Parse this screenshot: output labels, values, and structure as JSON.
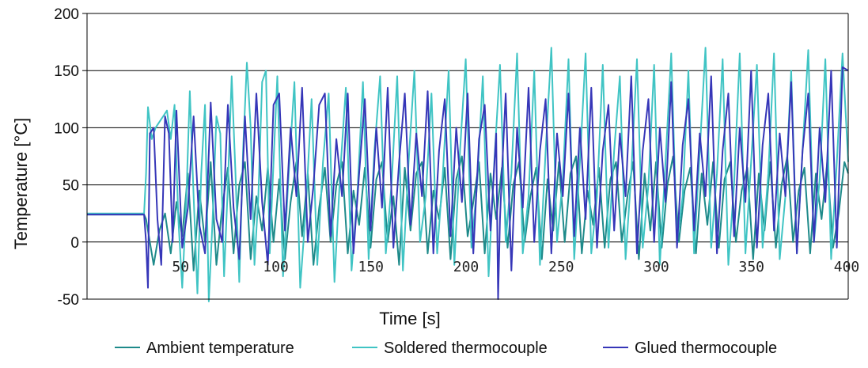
{
  "chart_data": {
    "type": "line",
    "title": "",
    "xlabel": "Time [s]",
    "ylabel": "Temperature [°C]",
    "xlim": [
      0,
      400
    ],
    "ylim": [
      -50,
      200
    ],
    "x_ticks": [
      50,
      100,
      150,
      200,
      250,
      300,
      350,
      400
    ],
    "x_tick_labels": [
      "50",
      "100",
      "150",
      "200",
      "250",
      "300",
      "350",
      "400"
    ],
    "y_ticks": [
      -50,
      0,
      50,
      100,
      150,
      200
    ],
    "y_tick_labels": [
      "-50",
      "0",
      "50",
      "100",
      "150",
      "200"
    ],
    "grid": "horizontal",
    "legend_position": "bottom",
    "series": [
      {
        "name": "Ambient temperature",
        "color": "#1e8a8a",
        "x": [
          0,
          10,
          20,
          30,
          31,
          33,
          35,
          38,
          41,
          44,
          47,
          50,
          53,
          56,
          59,
          62,
          65,
          68,
          71,
          74,
          77,
          80,
          83,
          86,
          89,
          92,
          95,
          98,
          101,
          104,
          107,
          110,
          113,
          116,
          119,
          122,
          125,
          128,
          131,
          134,
          137,
          140,
          143,
          146,
          149,
          152,
          155,
          158,
          161,
          164,
          167,
          170,
          173,
          176,
          179,
          182,
          185,
          188,
          191,
          194,
          197,
          200,
          203,
          206,
          209,
          212,
          215,
          218,
          221,
          224,
          227,
          230,
          233,
          236,
          239,
          242,
          245,
          248,
          251,
          254,
          257,
          260,
          263,
          266,
          269,
          272,
          275,
          278,
          281,
          284,
          287,
          290,
          293,
          296,
          299,
          302,
          305,
          308,
          311,
          314,
          317,
          320,
          323,
          326,
          329,
          332,
          335,
          338,
          341,
          344,
          347,
          350,
          353,
          356,
          359,
          362,
          365,
          368,
          371,
          374,
          377,
          380,
          383,
          386,
          389,
          392,
          395,
          398,
          400
        ],
        "values": [
          24,
          24,
          24,
          24,
          20,
          0,
          -20,
          10,
          25,
          -10,
          35,
          5,
          60,
          -25,
          45,
          0,
          70,
          -20,
          30,
          65,
          -10,
          50,
          70,
          -15,
          40,
          10,
          65,
          0,
          55,
          -15,
          35,
          70,
          5,
          60,
          -20,
          30,
          65,
          0,
          50,
          70,
          -10,
          45,
          15,
          65,
          -5,
          55,
          70,
          0,
          40,
          -20,
          65,
          10,
          60,
          70,
          -10,
          45,
          20,
          65,
          -15,
          55,
          75,
          5,
          35,
          70,
          -10,
          60,
          20,
          65,
          -5,
          50,
          70,
          0,
          40,
          65,
          -15,
          55,
          10,
          70,
          0,
          60,
          75,
          -10,
          45,
          15,
          65,
          -5,
          55,
          70,
          0,
          40,
          70,
          -15,
          60,
          10,
          70,
          -5,
          50,
          75,
          0,
          45,
          65,
          -10,
          60,
          15,
          70,
          -5,
          55,
          70,
          0,
          45,
          65,
          -15,
          60,
          10,
          70,
          -5,
          50,
          75,
          0,
          45,
          65,
          -10,
          60,
          20,
          70,
          -5,
          25,
          70,
          60
        ]
      },
      {
        "name": "Soldered thermocouple",
        "color": "#40c4c4",
        "x": [
          0,
          10,
          20,
          30,
          31,
          32,
          34,
          36,
          38,
          40,
          42,
          44,
          46,
          48,
          50,
          52,
          54,
          56,
          58,
          60,
          62,
          64,
          66,
          68,
          70,
          72,
          74,
          76,
          78,
          80,
          82,
          84,
          86,
          88,
          90,
          92,
          94,
          96,
          98,
          100,
          103,
          106,
          109,
          112,
          115,
          118,
          121,
          124,
          127,
          130,
          133,
          136,
          139,
          142,
          145,
          148,
          151,
          154,
          157,
          160,
          163,
          166,
          169,
          172,
          175,
          178,
          181,
          184,
          187,
          190,
          193,
          196,
          199,
          202,
          205,
          208,
          211,
          214,
          217,
          220,
          223,
          226,
          229,
          232,
          235,
          238,
          241,
          244,
          247,
          250,
          253,
          256,
          259,
          262,
          265,
          268,
          271,
          274,
          277,
          280,
          283,
          286,
          289,
          292,
          295,
          298,
          301,
          304,
          307,
          310,
          313,
          316,
          319,
          322,
          325,
          328,
          331,
          334,
          337,
          340,
          343,
          346,
          349,
          352,
          355,
          358,
          361,
          364,
          367,
          370,
          373,
          376,
          379,
          382,
          385,
          388,
          391,
          394,
          397,
          400
        ],
        "values": [
          25,
          25,
          25,
          25,
          60,
          118,
          90,
          100,
          105,
          110,
          115,
          90,
          120,
          20,
          -40,
          30,
          132,
          40,
          -45,
          60,
          120,
          -52,
          20,
          110,
          95,
          -30,
          50,
          145,
          60,
          -35,
          80,
          157,
          100,
          -20,
          40,
          140,
          150,
          -10,
          70,
          145,
          -30,
          60,
          140,
          -40,
          30,
          125,
          -20,
          70,
          130,
          -35,
          60,
          135,
          -25,
          40,
          140,
          -15,
          80,
          145,
          -10,
          50,
          145,
          -25,
          70,
          150,
          0,
          40,
          130,
          -10,
          60,
          150,
          -20,
          80,
          160,
          -5,
          50,
          145,
          -30,
          70,
          155,
          0,
          60,
          165,
          -10,
          40,
          150,
          -20,
          80,
          170,
          0,
          55,
          160,
          -15,
          70,
          165,
          -10,
          40,
          155,
          -5,
          80,
          145,
          -15,
          60,
          160,
          -5,
          50,
          155,
          -20,
          70,
          165,
          0,
          40,
          150,
          -10,
          80,
          170,
          -5,
          60,
          160,
          -20,
          50,
          165,
          -10,
          70,
          155,
          -5,
          60,
          165,
          -15,
          40,
          150,
          -10,
          80,
          168,
          0,
          55,
          160,
          -15,
          70,
          165,
          70
        ]
      },
      {
        "name": "Glued thermocouple",
        "color": "#3636b8",
        "x": [
          0,
          10,
          20,
          30,
          31,
          32,
          33,
          35,
          37,
          39,
          41,
          43,
          45,
          47,
          50,
          53,
          56,
          59,
          62,
          65,
          68,
          71,
          74,
          77,
          80,
          83,
          86,
          89,
          92,
          95,
          98,
          101,
          104,
          107,
          110,
          113,
          116,
          119,
          122,
          125,
          128,
          131,
          134,
          137,
          140,
          143,
          146,
          149,
          152,
          155,
          158,
          161,
          164,
          167,
          170,
          173,
          176,
          179,
          182,
          185,
          188,
          191,
          194,
          197,
          200,
          203,
          206,
          209,
          212,
          215,
          216,
          217,
          218,
          220,
          223,
          226,
          229,
          232,
          235,
          238,
          241,
          244,
          247,
          250,
          253,
          256,
          259,
          262,
          265,
          268,
          271,
          274,
          277,
          280,
          283,
          286,
          289,
          292,
          295,
          298,
          301,
          304,
          307,
          310,
          313,
          316,
          319,
          322,
          325,
          328,
          331,
          334,
          337,
          340,
          343,
          346,
          349,
          352,
          355,
          358,
          361,
          364,
          367,
          370,
          373,
          376,
          379,
          382,
          385,
          388,
          391,
          394,
          397,
          400
        ],
        "values": [
          24,
          24,
          24,
          24,
          0,
          -40,
          95,
          100,
          20,
          -20,
          110,
          95,
          0,
          115,
          -5,
          30,
          110,
          15,
          -10,
          122,
          20,
          0,
          120,
          30,
          -15,
          110,
          20,
          130,
          35,
          -20,
          120,
          130,
          10,
          100,
          40,
          135,
          0,
          50,
          120,
          130,
          5,
          90,
          40,
          130,
          -10,
          60,
          125,
          10,
          100,
          30,
          135,
          -5,
          70,
          130,
          15,
          95,
          40,
          132,
          -10,
          80,
          125,
          5,
          100,
          35,
          130,
          -10,
          90,
          120,
          10,
          95,
          -50,
          20,
          60,
          130,
          -25,
          100,
          30,
          135,
          0,
          80,
          125,
          -10,
          95,
          40,
          130,
          5,
          100,
          20,
          135,
          -5,
          80,
          120,
          10,
          95,
          40,
          145,
          -10,
          80,
          125,
          0,
          100,
          35,
          140,
          -5,
          85,
          125,
          10,
          95,
          40,
          145,
          -10,
          80,
          130,
          5,
          100,
          35,
          150,
          -5,
          85,
          130,
          10,
          95,
          40,
          140,
          -10,
          80,
          130,
          0,
          100,
          35,
          150,
          -5,
          153,
          150
        ]
      }
    ]
  }
}
